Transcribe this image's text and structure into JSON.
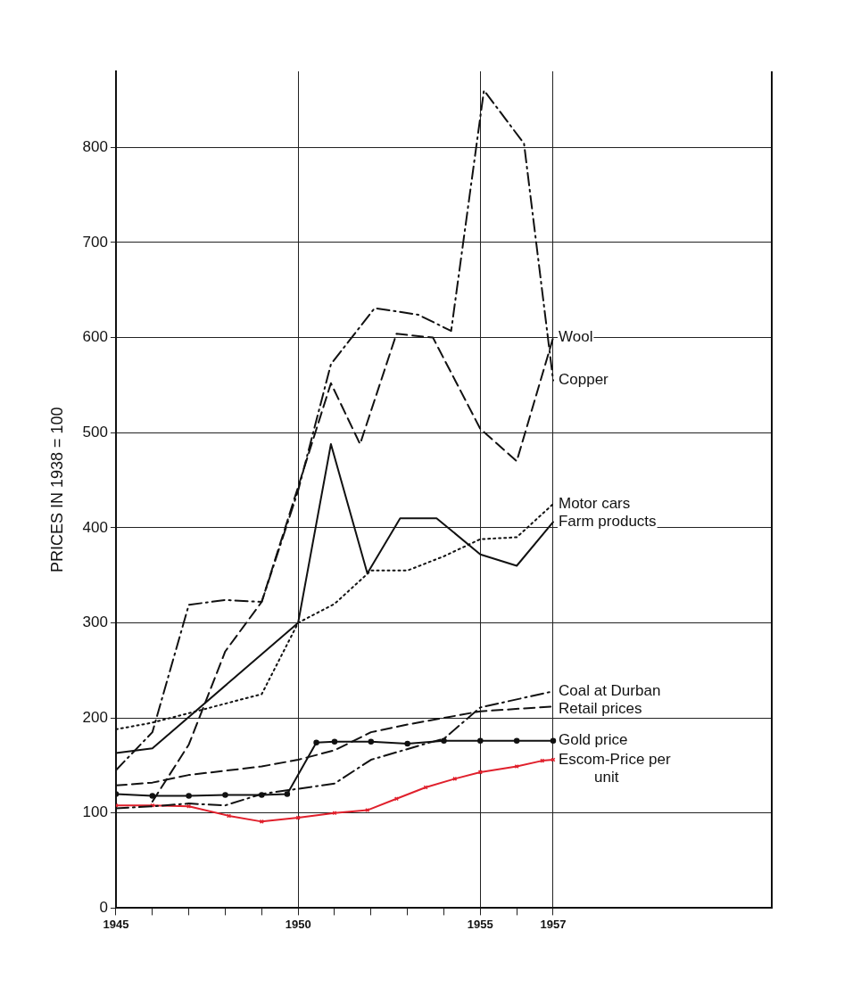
{
  "chart_data": {
    "type": "line",
    "ylabel": "PRICES IN 1938 = 100",
    "xlim": [
      1945,
      1963
    ],
    "xticks": [
      1945,
      {
        "value": 1946,
        "label": null
      },
      {
        "value": 1947,
        "label": null
      },
      {
        "value": 1948,
        "label": null
      },
      {
        "value": 1949,
        "label": null
      },
      1950,
      {
        "value": 1951,
        "label": null
      },
      {
        "value": 1952,
        "label": null
      },
      {
        "value": 1953,
        "label": null
      },
      {
        "value": 1954,
        "label": null
      },
      1955,
      {
        "value": 1956,
        "label": null
      },
      1957
    ],
    "ylim": [
      0,
      880
    ],
    "yticks": [
      0,
      100,
      200,
      300,
      400,
      500,
      600,
      700,
      800
    ],
    "grid": true,
    "legend": false,
    "series": [
      {
        "name": "Wool",
        "color": "#111111",
        "line_style": "dashed",
        "x": [
          1946,
          1947,
          1948,
          1949,
          1950,
          1950.9,
          1951.7,
          1952.7,
          1953.7,
          1955,
          1956,
          1957
        ],
        "values": [
          112,
          172,
          270,
          322,
          443,
          552,
          488,
          604,
          600,
          504,
          470,
          600
        ]
      },
      {
        "name": "Copper",
        "color": "#111111",
        "line_style": "dashdot",
        "x": [
          1945,
          1946,
          1947,
          1948,
          1949,
          1950,
          1950.9,
          1952.1,
          1953.3,
          1954.2,
          1955.1,
          1956.2,
          1957
        ],
        "values": [
          145,
          185,
          319,
          324,
          322,
          439,
          572,
          631,
          624,
          607,
          860,
          804,
          555
        ]
      },
      {
        "name": "Motor cars",
        "color": "#111111",
        "line_style": "dotted",
        "x": [
          1945,
          1946,
          1947.5,
          1949,
          1950,
          1951,
          1952,
          1953,
          1954,
          1955,
          1956,
          1957
        ],
        "values": [
          188,
          195,
          210,
          225,
          300,
          320,
          355,
          355,
          370,
          388,
          390,
          425
        ]
      },
      {
        "name": "Farm products",
        "color": "#111111",
        "line_style": "solid",
        "x": [
          1945,
          1946,
          1950,
          1950.9,
          1951.9,
          1952.8,
          1953.8,
          1955,
          1956,
          1957
        ],
        "values": [
          163,
          168,
          300,
          488,
          352,
          410,
          410,
          372,
          360,
          406
        ]
      },
      {
        "name": "Coal at Durban",
        "color": "#111111",
        "line_style": "dashdot",
        "x": [
          1945,
          1946,
          1947,
          1948,
          1949,
          1951,
          1952,
          1953.6,
          1954,
          1955,
          1957
        ],
        "values": [
          105,
          107,
          110,
          108,
          120,
          131,
          156,
          174,
          178,
          211,
          228
        ]
      },
      {
        "name": "Retail prices",
        "color": "#111111",
        "line_style": "dashed",
        "x": [
          1945,
          1946,
          1947,
          1949,
          1950,
          1951,
          1952,
          1953,
          1954,
          1955,
          1957
        ],
        "values": [
          129,
          132,
          140,
          149,
          156,
          166,
          185,
          193,
          200,
          207,
          212
        ]
      },
      {
        "name": "Gold price",
        "color": "#111111",
        "line_style": "solid",
        "marker": "circle",
        "x": [
          1945,
          1946,
          1947,
          1948,
          1949,
          1949.7,
          1950.5,
          1951,
          1952,
          1953,
          1954,
          1955,
          1956,
          1957
        ],
        "values": [
          120,
          118,
          118,
          119,
          119,
          120,
          174,
          175,
          175,
          173,
          176,
          176,
          176,
          176
        ]
      },
      {
        "name": "Escom-Price per unit",
        "color": "#e0202c",
        "line_style": "solid",
        "marker": "cross",
        "x": [
          1945,
          1946,
          1947,
          1948.1,
          1949,
          1950,
          1951,
          1951.9,
          1952.7,
          1953.5,
          1954.3,
          1955,
          1956,
          1956.7,
          1957
        ],
        "values": [
          108,
          108,
          107,
          97,
          91,
          95,
          100,
          103,
          115,
          127,
          136,
          143,
          149,
          155,
          156
        ]
      }
    ]
  }
}
